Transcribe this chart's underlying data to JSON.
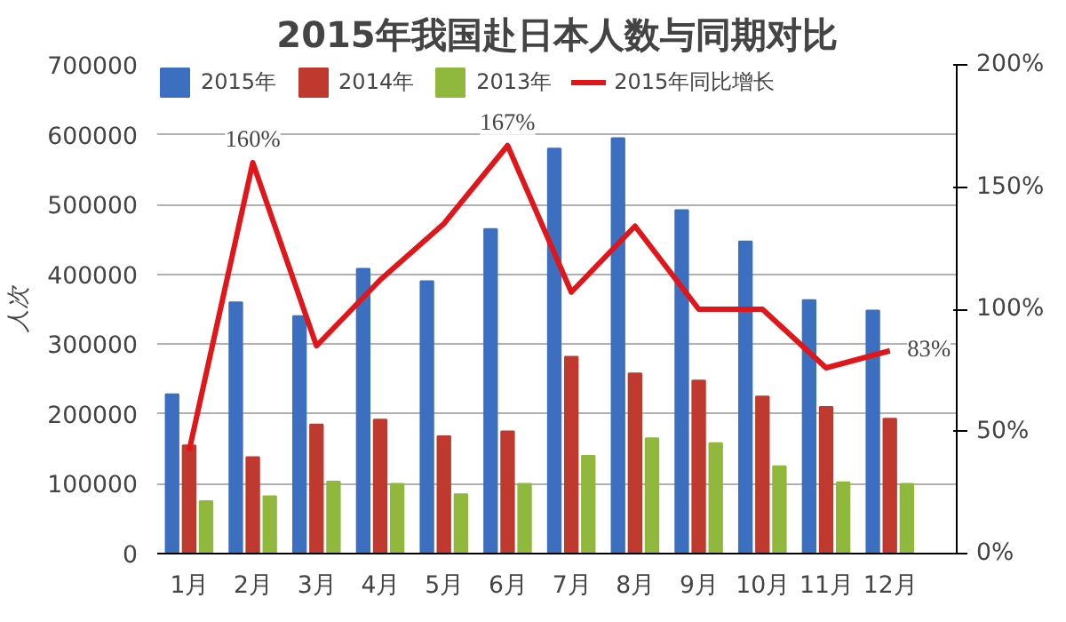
{
  "chart_data": {
    "type": "bar",
    "title": "2015年我国赴日本人数与同期对比",
    "ylabel": "人次",
    "categories": [
      "1月",
      "2月",
      "3月",
      "4月",
      "5月",
      "6月",
      "7月",
      "8月",
      "9月",
      "10月",
      "11月",
      "12月"
    ],
    "series": [
      {
        "name": "2015年",
        "color": "#3c6fc0",
        "values": [
          228000,
          360000,
          340000,
          408000,
          390000,
          465000,
          580000,
          595000,
          492000,
          447000,
          363000,
          348000
        ]
      },
      {
        "name": "2014年",
        "color": "#c0392e",
        "values": [
          155000,
          138000,
          185000,
          192000,
          168000,
          175000,
          282000,
          258000,
          248000,
          225000,
          210000,
          193000
        ]
      },
      {
        "name": "2013年",
        "color": "#8fb83c",
        "values": [
          75000,
          82000,
          103000,
          100000,
          85000,
          100000,
          140000,
          165000,
          158000,
          125000,
          102000,
          100000
        ]
      },
      {
        "name": "2015年同比增长",
        "type": "line",
        "axis": "y2",
        "color": "#e0161b",
        "values": [
          42,
          160,
          85,
          112,
          135,
          167,
          107,
          134,
          100,
          100,
          76,
          83
        ],
        "value_labels": [
          null,
          "160%",
          null,
          null,
          null,
          "167%",
          null,
          null,
          null,
          null,
          null,
          "83%"
        ]
      }
    ],
    "ylim": [
      0,
      700000
    ],
    "yticks": [
      0,
      100000,
      200000,
      300000,
      400000,
      500000,
      600000,
      700000
    ],
    "y2lim": [
      0,
      200
    ],
    "y2ticks": [
      {
        "value": 0,
        "label": "0%"
      },
      {
        "value": 50,
        "label": "50%"
      },
      {
        "value": 100,
        "label": "100%"
      },
      {
        "value": 150,
        "label": "150%"
      },
      {
        "value": 200,
        "label": "200%"
      }
    ],
    "grid": "y",
    "legend": "top"
  }
}
